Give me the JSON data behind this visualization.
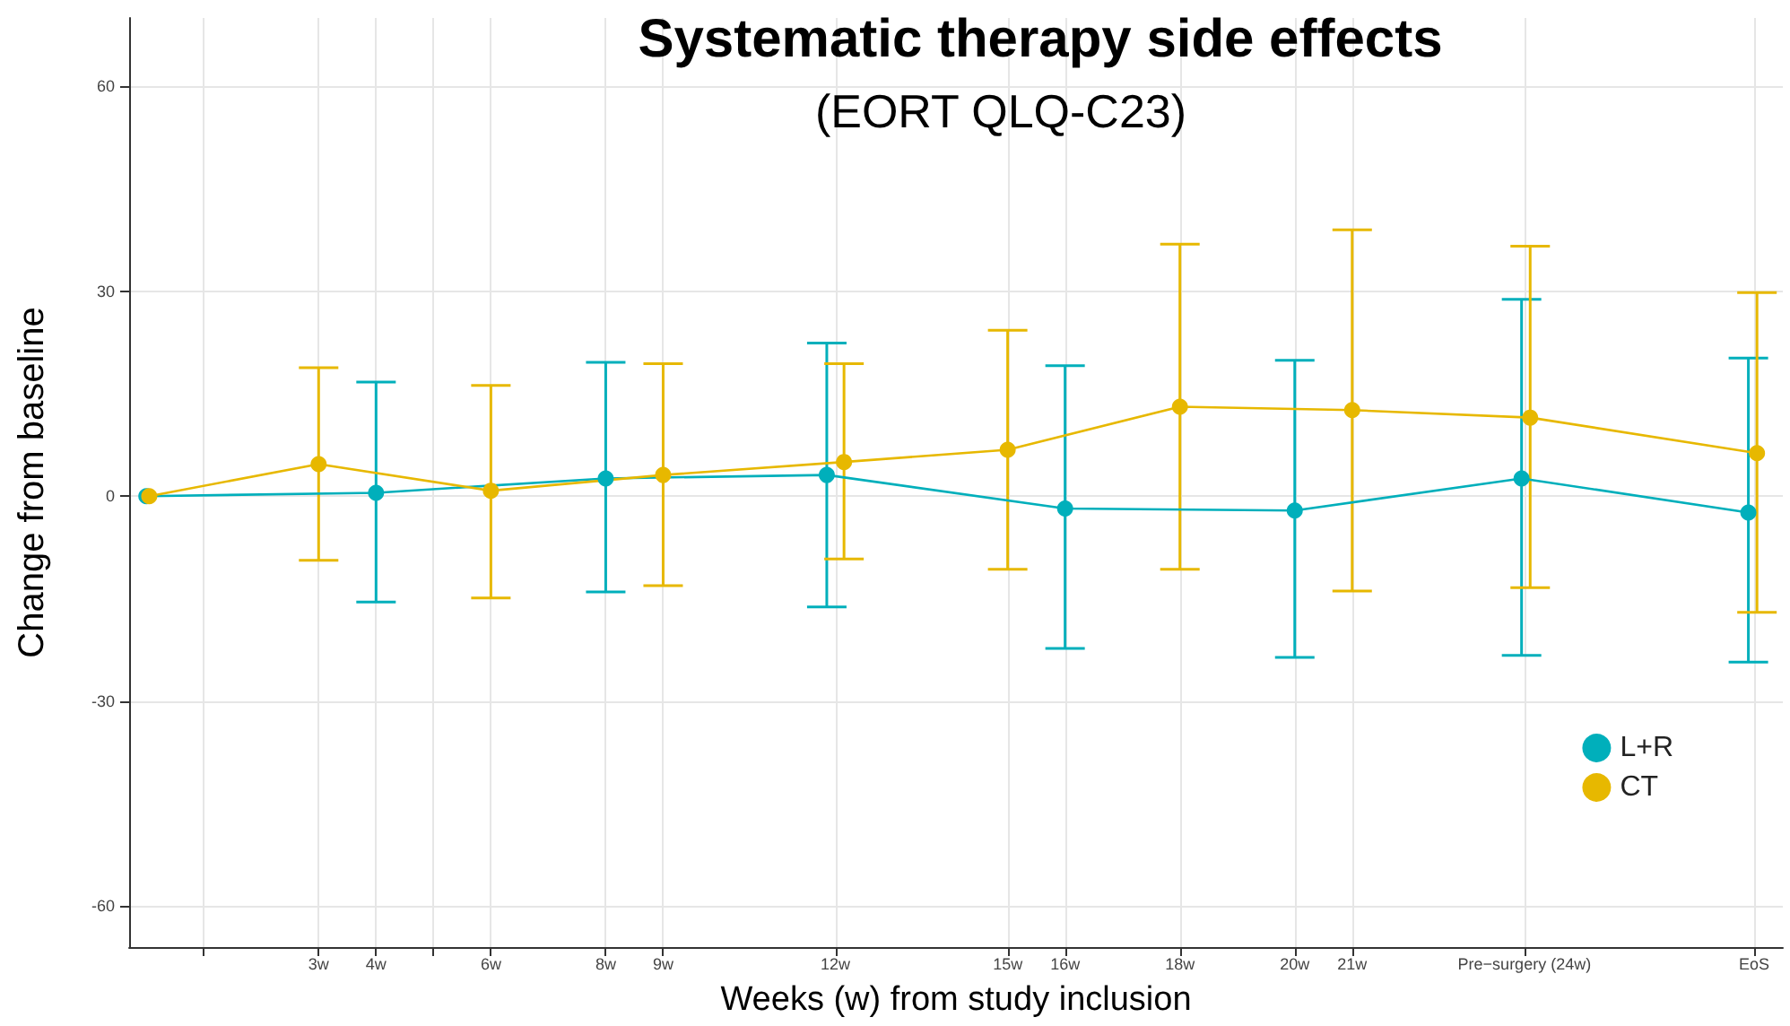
{
  "chart_data": {
    "type": "line",
    "title": "Systematic therapy side effects",
    "subtitle": "(EORT QLQ-C23)",
    "xlabel": "Weeks (w) from study inclusion",
    "ylabel": "Change from baseline",
    "xlim": [
      -0.3,
      28.5
    ],
    "xticks": [
      {
        "value": 1,
        "label": null
      },
      {
        "value": 3,
        "label": "3w"
      },
      {
        "value": 4,
        "label": "4w"
      },
      {
        "value": 5,
        "label": null
      },
      {
        "value": 6,
        "label": "6w"
      },
      {
        "value": 8,
        "label": "8w"
      },
      {
        "value": 9,
        "label": "9w"
      },
      {
        "value": 12,
        "label": "12w"
      },
      {
        "value": 15,
        "label": "15w"
      },
      {
        "value": 16,
        "label": "16w"
      },
      {
        "value": 18,
        "label": "18w"
      },
      {
        "value": 20,
        "label": "20w"
      },
      {
        "value": 21,
        "label": "21w"
      },
      {
        "value": 24,
        "label": "Pre−surgery (24w)"
      },
      {
        "value": 28,
        "label": "EoS"
      }
    ],
    "ylim": [
      -66,
      70
    ],
    "yticks": [
      -60,
      -30,
      0,
      30,
      60
    ],
    "grid": true,
    "legend": "bottom right",
    "marker": "circle",
    "line_style": "solid",
    "series": [
      {
        "name": "L+R",
        "color": "#00afbb",
        "x": [
          0,
          4,
          8,
          11.85,
          16,
          20,
          23.95,
          27.9
        ],
        "values": [
          0,
          0.5,
          2.6,
          3.1,
          -1.8,
          -2.1,
          2.6,
          -2.4
        ],
        "errors": [
          null,
          [
            -15.5,
            16.7
          ],
          [
            -14,
            19.6
          ],
          [
            -16.2,
            22.4
          ],
          [
            -22.3,
            19.1
          ],
          [
            -23.6,
            19.9
          ],
          [
            -23.3,
            28.8
          ],
          [
            -24.3,
            20.2
          ]
        ]
      },
      {
        "name": "CT",
        "color": "#e7b800",
        "x": [
          0.05,
          3,
          6,
          9,
          12.15,
          15,
          18,
          21,
          24.1,
          28.05
        ],
        "values": [
          0,
          4.7,
          0.8,
          3.1,
          5,
          6.8,
          13.1,
          12.6,
          11.5,
          6.3
        ],
        "errors": [
          null,
          [
            -9.4,
            18.8
          ],
          [
            -14.9,
            16.2
          ],
          [
            -13.1,
            19.4
          ],
          [
            -9.2,
            19.4
          ],
          [
            -10.7,
            24.3
          ],
          [
            -10.7,
            36.9
          ],
          [
            -13.9,
            39
          ],
          [
            -13.4,
            36.6
          ],
          [
            -17,
            29.8
          ]
        ]
      }
    ]
  }
}
